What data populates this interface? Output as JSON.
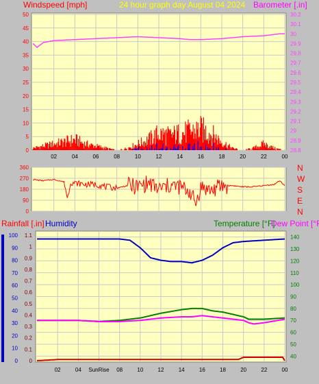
{
  "header": {
    "windspeed_label": "Windspeed [mph]",
    "title": "24 hour graph day   August 04 2024",
    "barometer_label": "Barometer [.in]"
  },
  "bottom_labels": {
    "rainfall": "Rainfall [.in]",
    "humidity": "Humidity",
    "temperature": "Temperature [°F]",
    "dewpoint": "Dew Point [°F]"
  },
  "colors": {
    "background": "#c0c0c0",
    "plot_bg": "#ffffc0",
    "grid": "#c8c8c8",
    "wind": "#ff0000",
    "gust": "#0000ff",
    "barometer": "#ff40ff",
    "direction": "#ff0000",
    "rain": "#d00000",
    "humidity": "#0000c0",
    "temperature": "#008000",
    "dewpoint": "#ff00ff",
    "title": "#ffff00"
  },
  "chart_data": [
    {
      "type": "line",
      "name": "wind-barometer",
      "x_ticks": [
        "02",
        "04",
        "06",
        "08",
        "10",
        "12",
        "14",
        "16",
        "18",
        "20",
        "22",
        "00"
      ],
      "y_left_ticks": [
        "0",
        "5",
        "10",
        "15",
        "20",
        "25",
        "30",
        "35",
        "40",
        "45",
        "50"
      ],
      "y_right_ticks": [
        "28.8",
        "28.9",
        "29",
        "29.1",
        "29.2",
        "29.3",
        "29.4",
        "29.5",
        "29.6",
        "29.7",
        "29.8",
        "29.9",
        "30",
        "30.1",
        "30.2"
      ],
      "y_left_range": [
        0,
        50
      ],
      "y_right_range": [
        28.8,
        30.2
      ],
      "x_range_hours": [
        0,
        24
      ],
      "series": [
        {
          "name": "Windspeed [mph]",
          "axis": "left",
          "hours": [
            0,
            1,
            2,
            3,
            4,
            5,
            6,
            7,
            8,
            9,
            10,
            11,
            12,
            13,
            14,
            15,
            16,
            17,
            18,
            19,
            20,
            21,
            22,
            23,
            24
          ],
          "values": [
            1,
            2,
            3,
            4,
            5,
            3,
            2,
            1,
            0,
            1,
            3,
            5,
            8,
            7,
            8,
            9,
            10,
            8,
            4,
            1,
            0,
            1,
            3,
            1,
            0
          ]
        },
        {
          "name": "Barometer [.in]",
          "axis": "right",
          "hours": [
            0,
            0.4,
            1,
            2,
            4,
            6,
            8,
            10,
            12,
            14,
            15,
            16,
            18,
            19,
            20,
            22,
            23.5,
            24
          ],
          "values": [
            29.9,
            29.86,
            29.91,
            29.93,
            29.94,
            29.95,
            29.96,
            29.97,
            29.96,
            29.95,
            29.94,
            29.94,
            29.95,
            29.96,
            29.97,
            29.98,
            30.0,
            30.0
          ]
        }
      ]
    },
    {
      "type": "line",
      "name": "wind-direction",
      "y_ticks": [
        "360",
        "270",
        "180",
        "90",
        "0"
      ],
      "y_range": [
        0,
        360
      ],
      "compass_labels": [
        "N",
        "W",
        "S",
        "E",
        "N"
      ],
      "series": [
        {
          "name": "Wind Direction",
          "axis": "left",
          "hours": [
            0,
            1,
            2,
            3,
            3.3,
            3.6,
            4,
            5,
            6,
            7,
            8,
            9,
            10,
            11,
            12,
            13,
            14,
            15,
            15.5,
            16,
            17,
            18,
            19,
            20,
            21,
            22,
            23,
            23.5,
            24
          ],
          "values": [
            260,
            250,
            260,
            240,
            100,
            240,
            230,
            220,
            220,
            200,
            190,
            210,
            200,
            230,
            180,
            210,
            200,
            160,
            60,
            200,
            170,
            210,
            210,
            200,
            200,
            210,
            220,
            250,
            210
          ]
        }
      ]
    },
    {
      "type": "line",
      "name": "rain-humidity-temperature",
      "y_rain_ticks": [
        "0",
        "0.1",
        "0.2",
        "0.3",
        "0.4",
        "0.5",
        "0.6",
        "0.7",
        "0.8",
        "0.9",
        "1",
        "1.1"
      ],
      "y_humidity_ticks": [
        "0",
        "10",
        "20",
        "30",
        "40",
        "50",
        "60",
        "70",
        "80",
        "90",
        "100"
      ],
      "y_temp_ticks": [
        "40",
        "50",
        "60",
        "70",
        "80",
        "90",
        "100",
        "110",
        "120",
        "130",
        "140"
      ],
      "y_temp_range": [
        35,
        145
      ],
      "y_rain_range": [
        0,
        1.15
      ],
      "y_humidity_range": [
        0,
        100
      ],
      "x_labels": [
        "02",
        "04",
        "SunRise",
        "08",
        "10",
        "12",
        "14",
        "16",
        "18",
        "20",
        "22",
        "00"
      ],
      "series": [
        {
          "name": "Temperature [°F]",
          "axis": "right",
          "hours": [
            0,
            2,
            4,
            6,
            8,
            10,
            12,
            14,
            15,
            16,
            17,
            18,
            19,
            20,
            20.5,
            22,
            24
          ],
          "values": [
            70,
            70,
            70,
            69,
            70,
            72,
            76,
            79,
            80,
            80,
            78,
            77,
            75,
            73,
            71,
            71,
            72
          ]
        },
        {
          "name": "Dew Point [°F]",
          "axis": "right",
          "hours": [
            0,
            2,
            4,
            6,
            8,
            10,
            12,
            14,
            15,
            16,
            18,
            19,
            20,
            20.5,
            21,
            22,
            24
          ],
          "values": [
            70,
            70,
            70,
            69,
            69,
            70,
            72,
            73,
            73,
            74,
            72,
            71,
            70,
            68,
            67,
            68,
            71
          ]
        },
        {
          "name": "Humidity",
          "axis": "humidity",
          "hours": [
            0,
            2,
            4,
            6,
            8,
            9,
            10,
            11,
            12,
            13,
            14,
            15,
            16,
            17,
            18,
            19,
            20,
            22,
            24
          ],
          "values": [
            97,
            97,
            97,
            97,
            97,
            96,
            90,
            82,
            80,
            79,
            79,
            78,
            80,
            84,
            90,
            94,
            95,
            96,
            97
          ]
        },
        {
          "name": "Rainfall [.in]",
          "axis": "rain",
          "hours": [
            0,
            2,
            4,
            6,
            8,
            10,
            12,
            14,
            16,
            18,
            19.5,
            20,
            22,
            23.8,
            24
          ],
          "values": [
            0,
            0.01,
            0.01,
            0.01,
            0.01,
            0.01,
            0.01,
            0.01,
            0.01,
            0.01,
            0.01,
            0.03,
            0.03,
            0.03,
            0.0
          ]
        }
      ]
    }
  ]
}
